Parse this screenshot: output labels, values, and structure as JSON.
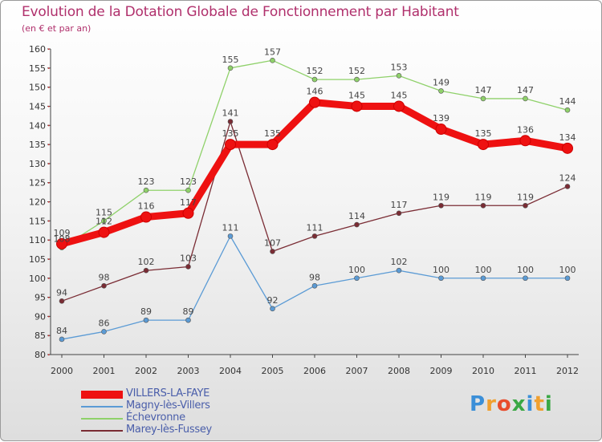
{
  "chart_data": {
    "type": "line",
    "title": "Evolution de la Dotation Globale de Fonctionnement par Habitant",
    "subtitle": "(en € et par an)",
    "xlabel": "",
    "ylabel": "",
    "categories": [
      "2000",
      "2001",
      "2002",
      "2003",
      "2004",
      "2005",
      "2006",
      "2007",
      "2008",
      "2009",
      "2010",
      "2011",
      "2012"
    ],
    "ylim": [
      80,
      160
    ],
    "yticks": [
      "80",
      "85",
      "90",
      "95",
      "100",
      "105",
      "110",
      "115",
      "120",
      "125",
      "130",
      "135",
      "140",
      "145",
      "150",
      "155",
      "160"
    ],
    "grid": false,
    "legend_position": "bottom-left",
    "series": [
      {
        "name": "Magny-lès-Villers",
        "color": "#5b9bd5",
        "values": [
          84,
          86,
          89,
          89,
          111,
          92,
          98,
          100,
          102,
          100,
          100,
          100,
          100
        ]
      },
      {
        "name": "Échevronne",
        "color": "#8fd16a",
        "values": [
          108,
          115,
          123,
          123,
          155,
          157,
          152,
          152,
          153,
          149,
          147,
          147,
          144
        ]
      },
      {
        "name": "Marey-lès-Fussey",
        "color": "#7a2c34",
        "values": [
          94,
          98,
          102,
          103,
          141,
          107,
          111,
          114,
          117,
          119,
          119,
          119,
          124
        ]
      },
      {
        "name": "VILLERS-LA-FAYE",
        "color": "#ee1111",
        "values": [
          109,
          112,
          116,
          117,
          135,
          135,
          146,
          145,
          145,
          139,
          135,
          136,
          134
        ]
      }
    ]
  },
  "legend": [
    {
      "label": "VILLERS-LA-FAYE",
      "color": "#ee1111"
    },
    {
      "label": "Magny-lès-Villers",
      "color": "#5b9bd5"
    },
    {
      "label": "Échevronne",
      "color": "#8fd16a"
    },
    {
      "label": "Marey-lès-Fussey",
      "color": "#7a2c34"
    }
  ],
  "logo": {
    "letters": [
      "P",
      "r",
      "o",
      "x",
      "i",
      "t",
      "i"
    ],
    "colors": [
      "#3b8fd8",
      "#f0a030",
      "#e84c2c",
      "#3aa844",
      "#3b8fd8",
      "#f0a030",
      "#3aa844"
    ]
  }
}
